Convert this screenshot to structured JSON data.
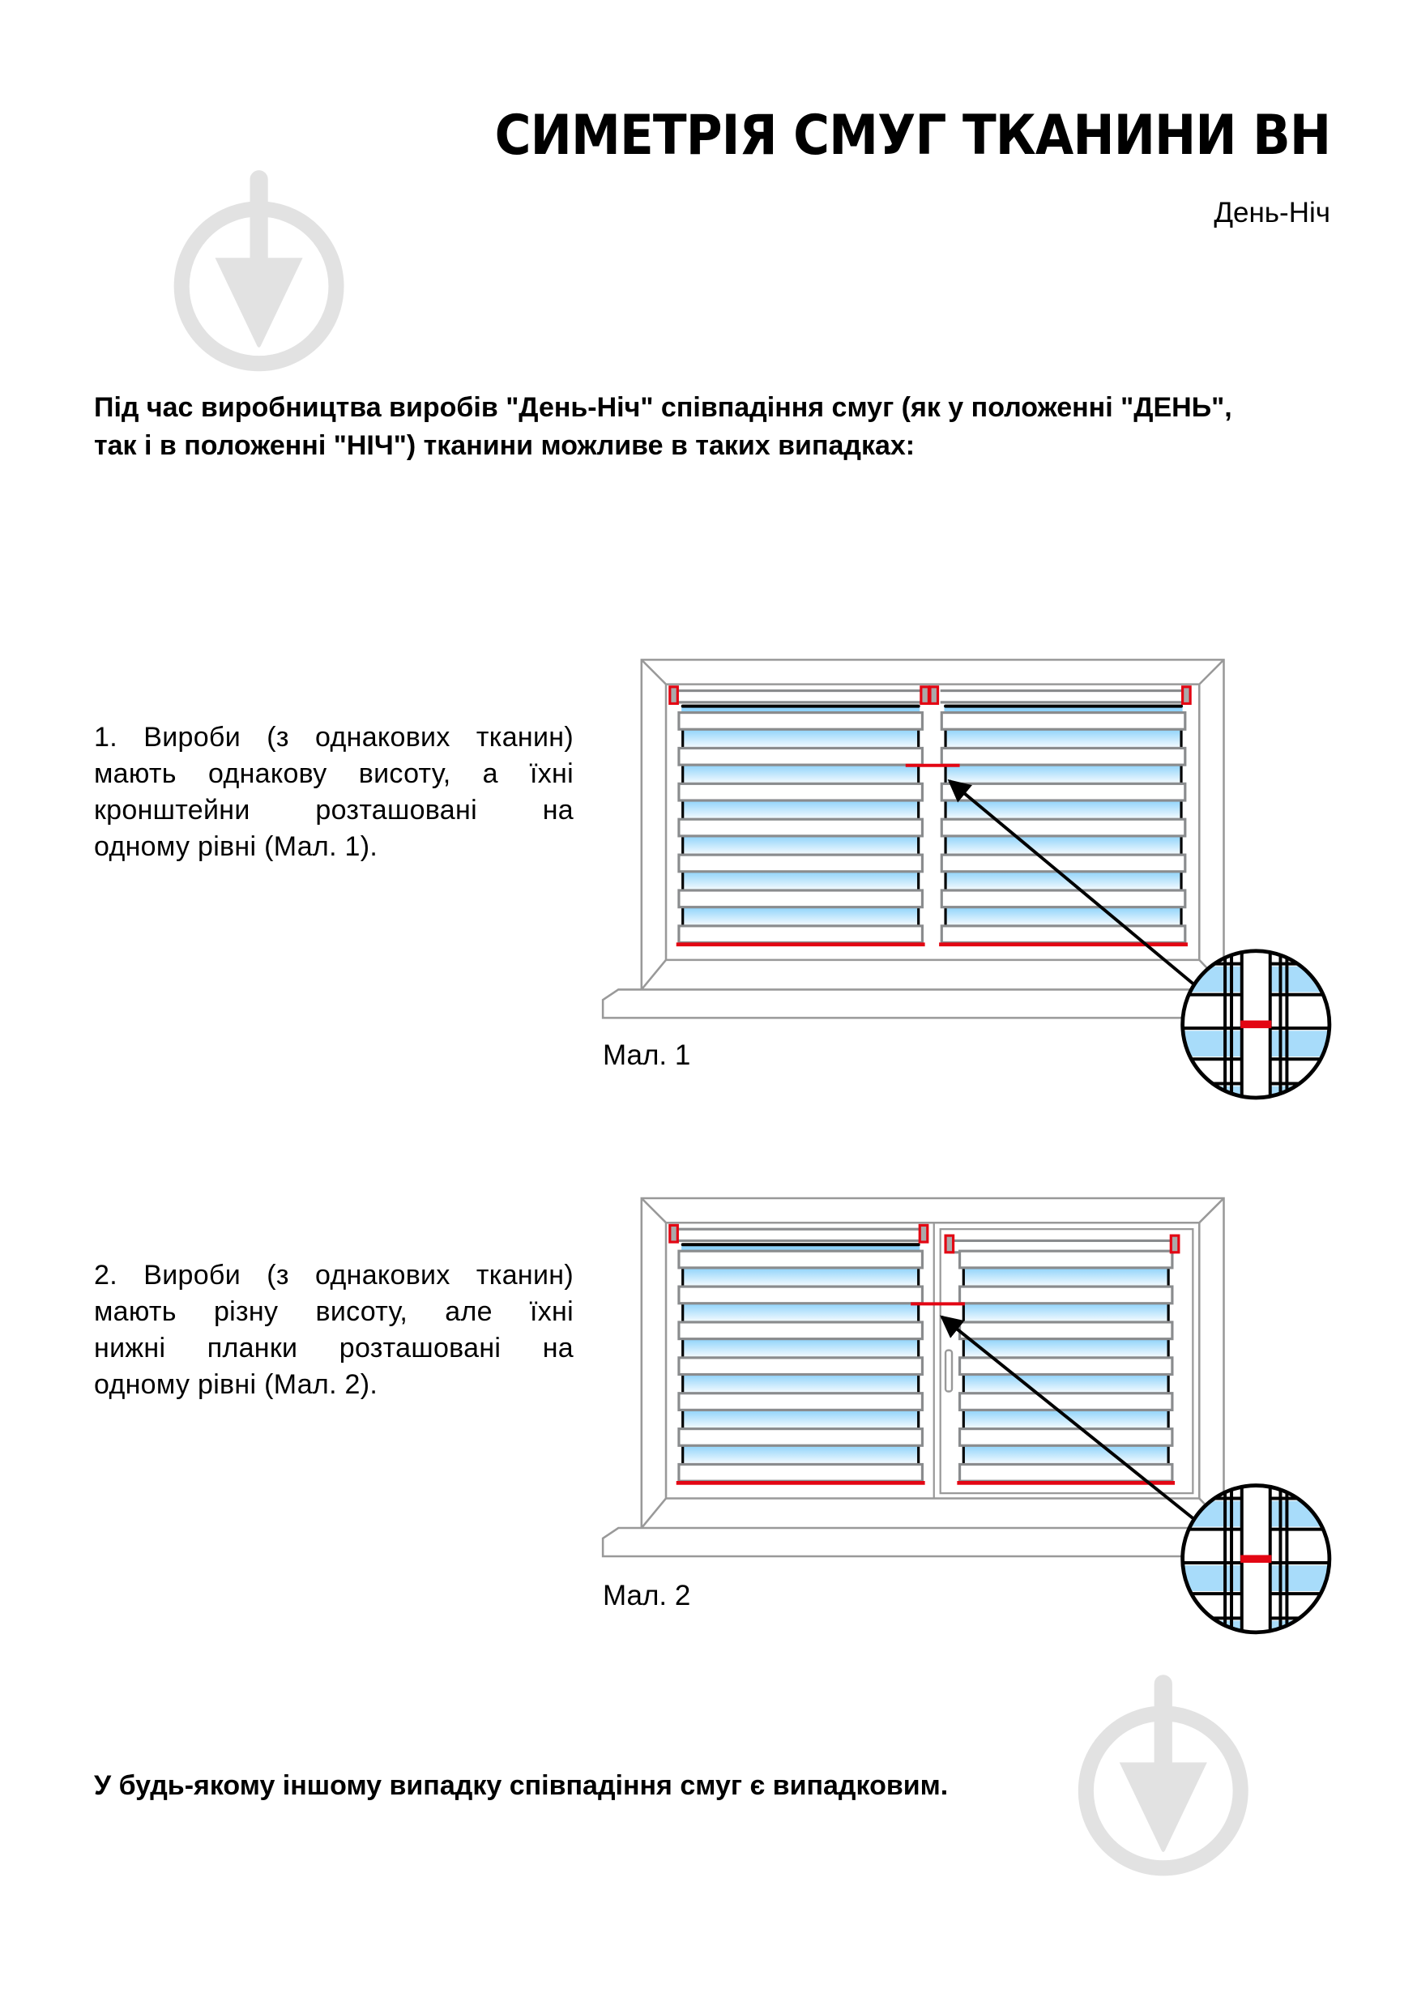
{
  "header": {
    "title": "СИМЕТРІЯ СМУГ ТКАНИНИ ВН",
    "subtitle": "День-Ніч"
  },
  "intro": {
    "lines": [
      "Під час виробництва виробів \"День-Ніч\" співпадіння смуг (як у положенні \"ДЕНЬ\",",
      "так і в положенні \"НІЧ\") тканини можливе в таких випадках:"
    ]
  },
  "cases": [
    {
      "lines": [
        "1. Вироби (з однакових тканин)",
        "мають однакову висоту, а їхні",
        "кронштейни розташовані на",
        "одному рівні (Мал. 1)."
      ],
      "caption": "Мал. 1"
    },
    {
      "lines": [
        "2. Вироби (з однакових тканин)",
        "мають різну висоту, але їхні",
        "нижні планки розташовані на",
        "одному рівні (Мал. 2)."
      ],
      "caption": "Мал. 2"
    }
  ],
  "outro": "У будь-якому іншому випадку співпадіння смуг є випадковим.",
  "colors": {
    "accent_red": "#e30613",
    "frame_gray": "#8a8c8e",
    "fabric_blue": "#8fd3fa",
    "watermark": "#e2e2e2"
  },
  "icons": [
    "trowel-logo-watermark-icon",
    "magnifier-detail-icon",
    "arrow-icon"
  ]
}
